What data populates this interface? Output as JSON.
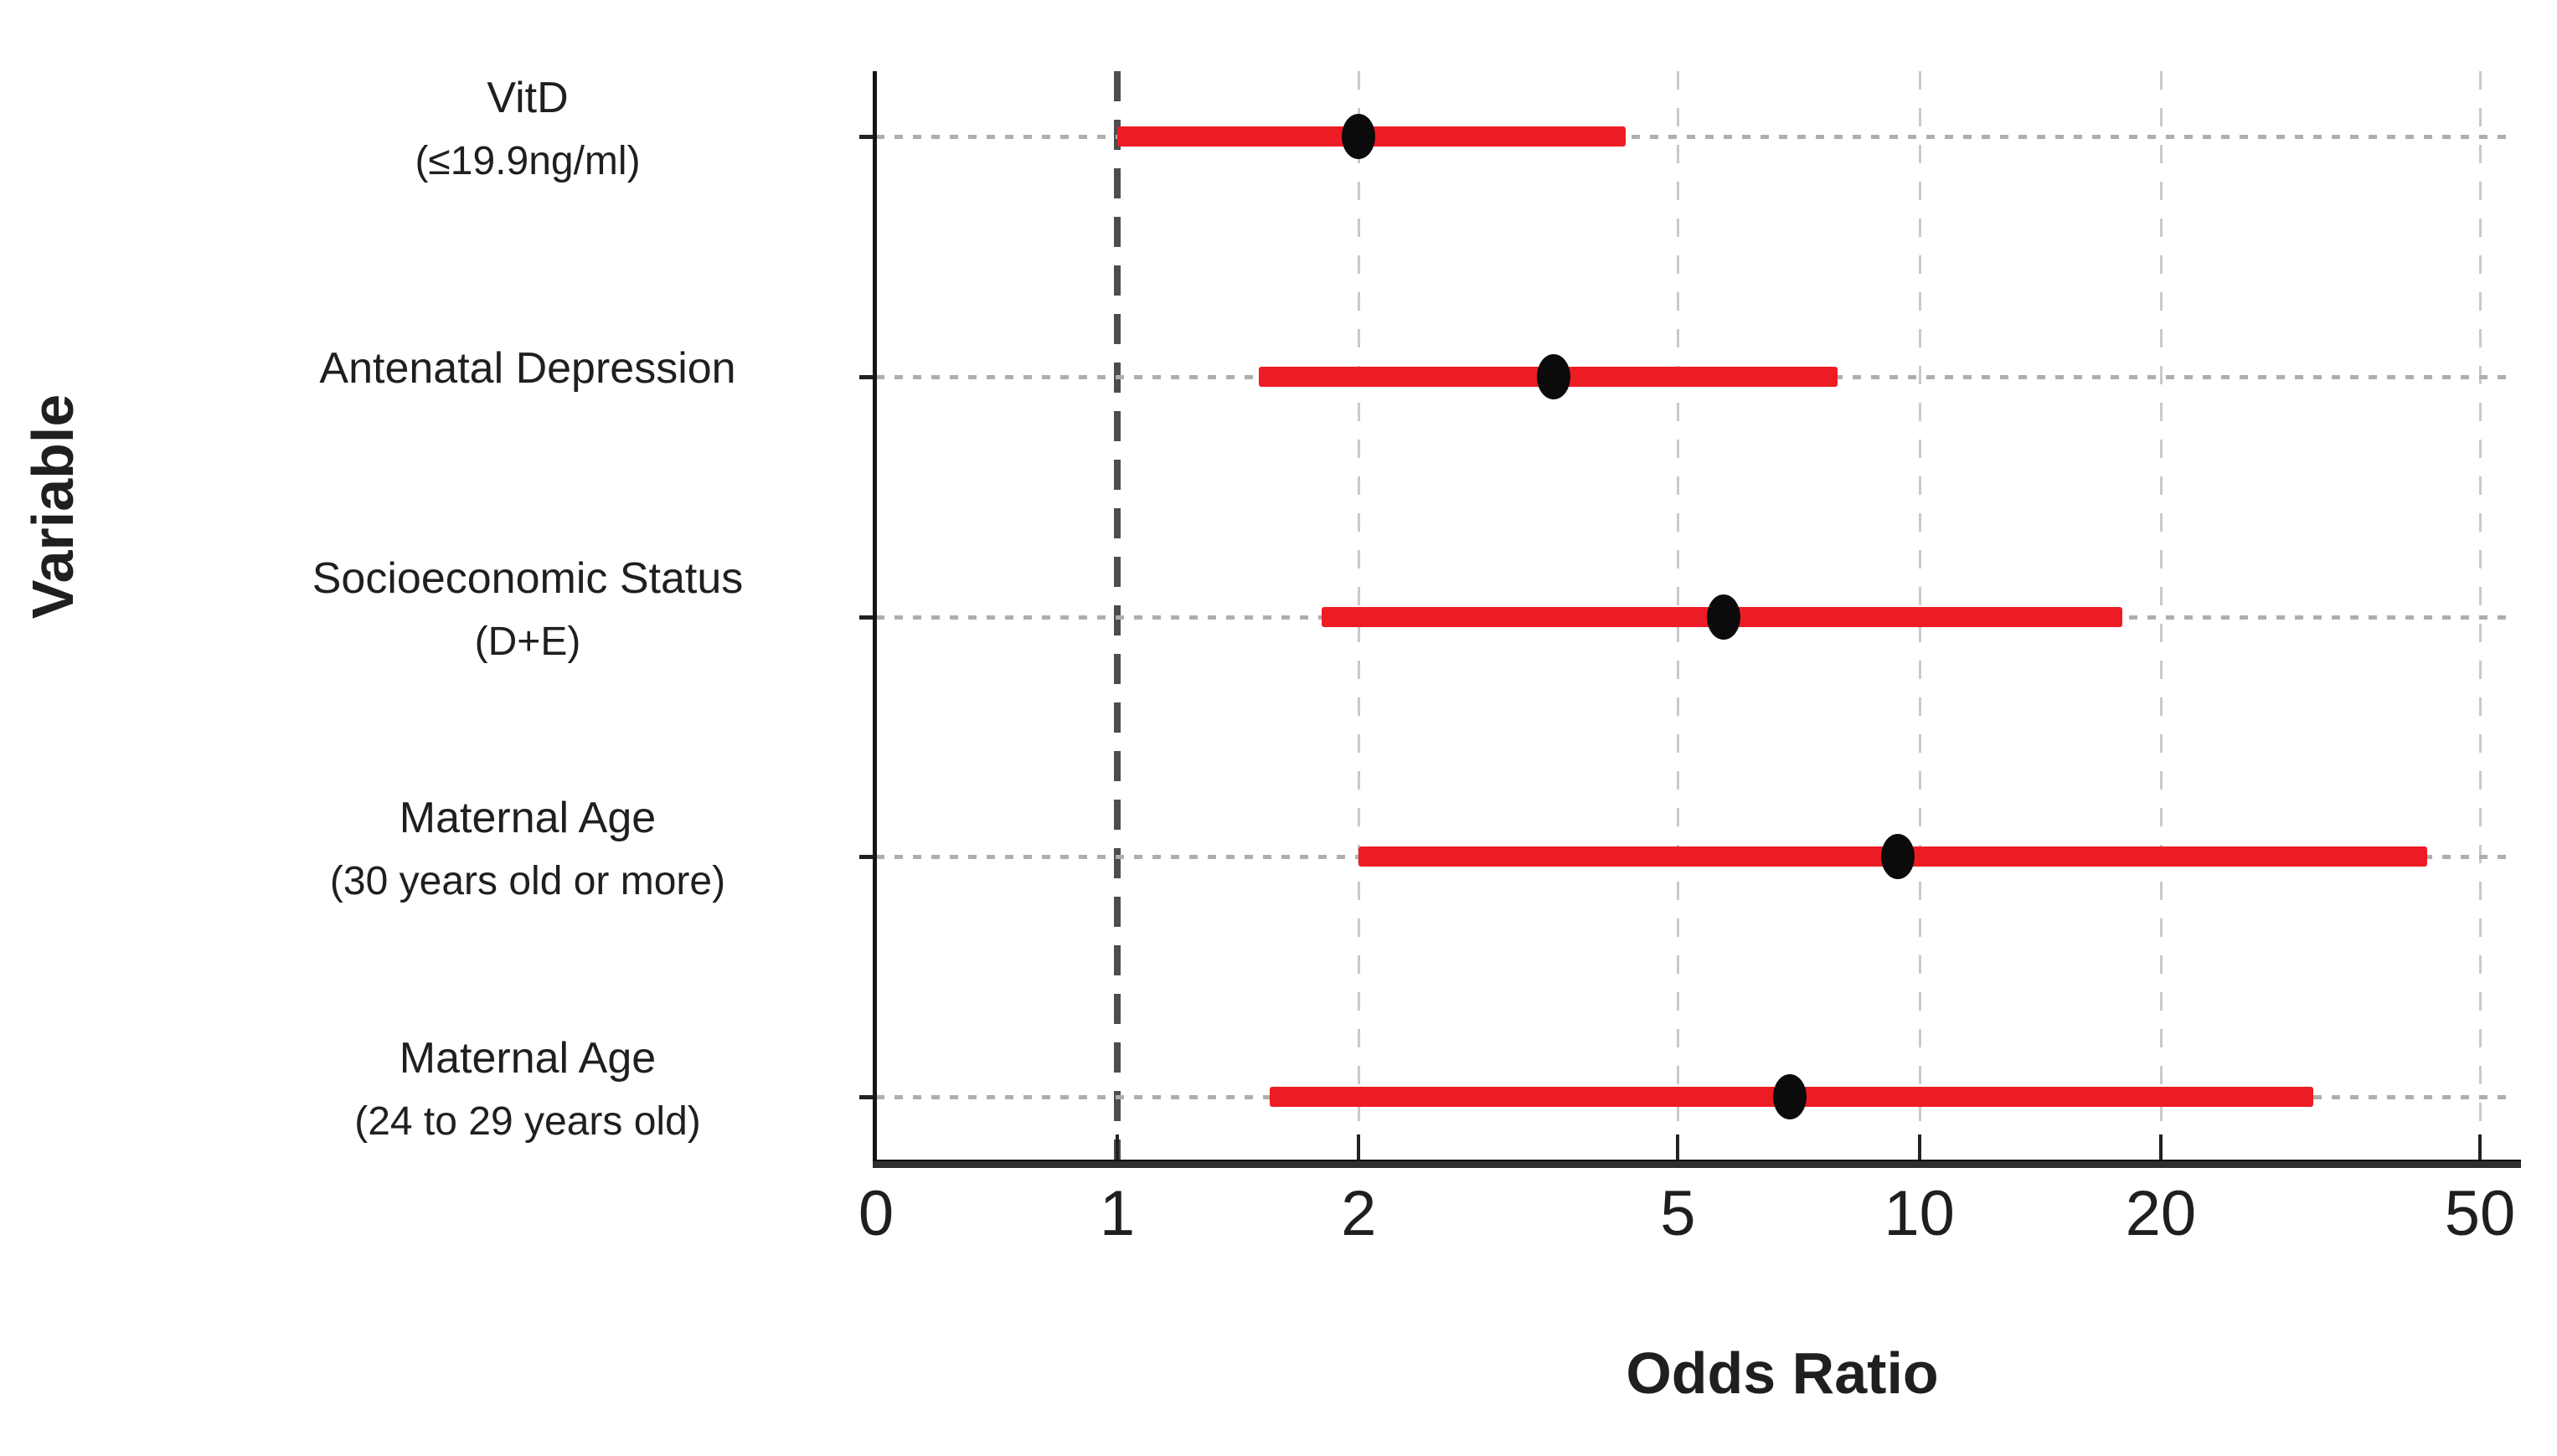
{
  "chart_data": {
    "type": "scatter",
    "subtype": "forest-plot",
    "orientation": "horizontal",
    "x_scale": "log",
    "xlabel": "Odds Ratio",
    "ylabel": "Variable",
    "x_ticks": [
      0,
      1,
      2,
      5,
      10,
      20,
      50
    ],
    "reference_line_x": 1,
    "grid": "on",
    "rows": [
      {
        "label": "VitD",
        "detail": "(≤19.9ng/ml)",
        "or": 2.0,
        "ci_low": 1.0,
        "ci_high": 4.3
      },
      {
        "label": "Antenatal Depression",
        "detail": "",
        "or": 3.5,
        "ci_low": 1.5,
        "ci_high": 7.9
      },
      {
        "label": "Socioeconomic Status",
        "detail": "(D+E)",
        "or": 5.7,
        "ci_low": 1.8,
        "ci_high": 17.9
      },
      {
        "label": "Maternal Age",
        "detail": "(30 years old or more)",
        "or": 9.4,
        "ci_low": 2.0,
        "ci_high": 43
      },
      {
        "label": "Maternal Age",
        "detail": "(24 to 29 years old)",
        "or": 6.9,
        "ci_low": 1.55,
        "ci_high": 31
      }
    ],
    "colors": {
      "bar": "#ed1c24",
      "point": "#0b0b0b",
      "reference_line": "#4d4d4d",
      "gridline": "#c9c9c9",
      "row_gridline": "#aeaeae",
      "axis": "#1c1c1c",
      "text": "#1f1f1f"
    }
  }
}
